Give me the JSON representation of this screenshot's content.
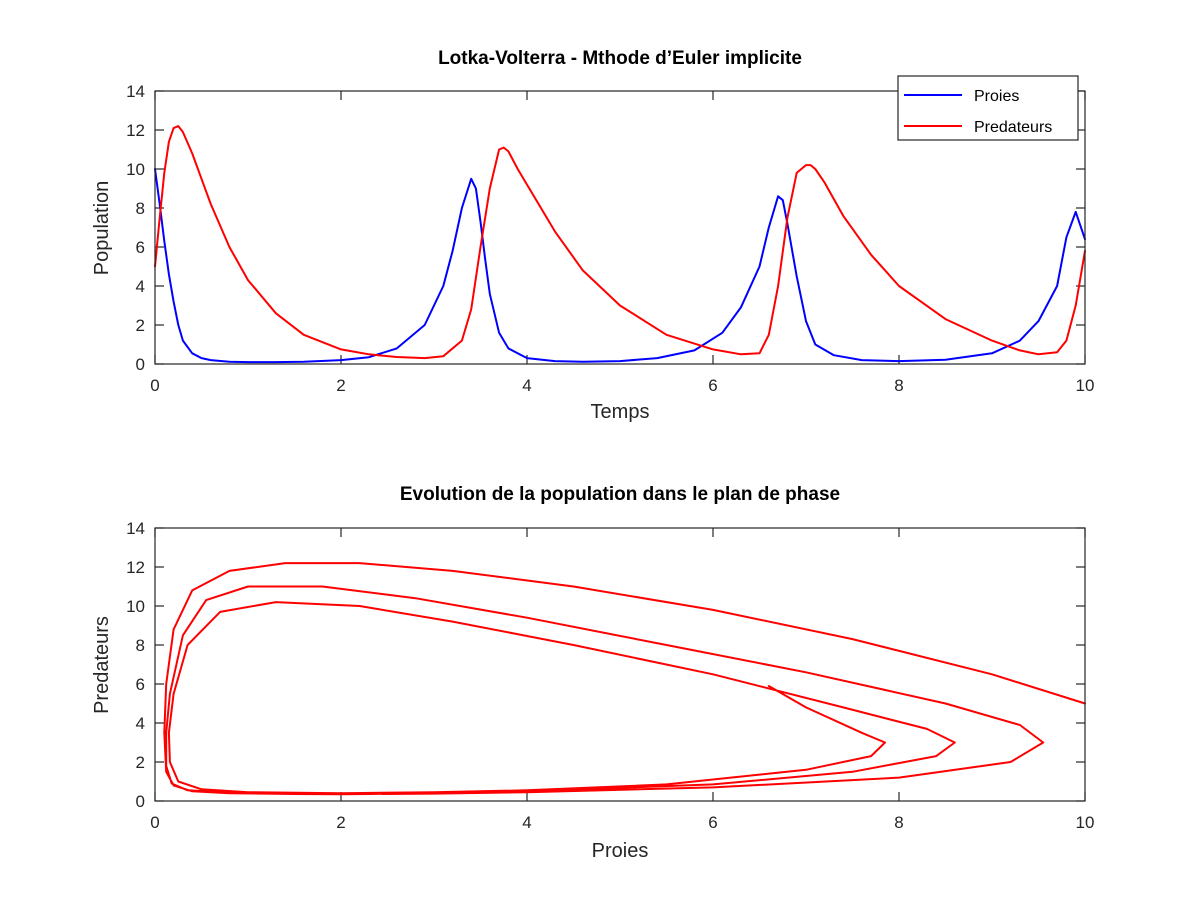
{
  "chart_data": [
    {
      "type": "line",
      "title": "Lotka-Volterra - Mthode d’Euler implicite",
      "xlabel": "Temps",
      "ylabel": "Population",
      "xlim": [
        0,
        10
      ],
      "ylim": [
        0,
        14
      ],
      "xticks": [
        "0",
        "2",
        "4",
        "6",
        "8",
        "10"
      ],
      "yticks": [
        "0",
        "2",
        "4",
        "6",
        "8",
        "10",
        "12",
        "14"
      ],
      "legend_position": "top-right",
      "series": [
        {
          "name": "Proies",
          "color": "#0000ff",
          "x": [
            0,
            0.05,
            0.1,
            0.15,
            0.2,
            0.25,
            0.3,
            0.4,
            0.5,
            0.6,
            0.8,
            1.0,
            1.3,
            1.6,
            2.0,
            2.3,
            2.6,
            2.9,
            3.1,
            3.2,
            3.3,
            3.4,
            3.45,
            3.5,
            3.55,
            3.6,
            3.7,
            3.8,
            4.0,
            4.3,
            4.6,
            5.0,
            5.4,
            5.8,
            6.1,
            6.3,
            6.5,
            6.6,
            6.7,
            6.75,
            6.8,
            6.9,
            7.0,
            7.1,
            7.3,
            7.6,
            8.0,
            8.5,
            9.0,
            9.3,
            9.5,
            9.7,
            9.8,
            9.9,
            10.0
          ],
          "y": [
            10.0,
            8.2,
            6.3,
            4.6,
            3.2,
            2.0,
            1.2,
            0.55,
            0.3,
            0.2,
            0.12,
            0.1,
            0.1,
            0.12,
            0.2,
            0.35,
            0.8,
            2.0,
            4.0,
            5.8,
            8.0,
            9.5,
            9.0,
            7.3,
            5.4,
            3.6,
            1.6,
            0.8,
            0.3,
            0.15,
            0.12,
            0.15,
            0.3,
            0.7,
            1.6,
            2.9,
            5.0,
            7.0,
            8.6,
            8.4,
            7.2,
            4.5,
            2.2,
            1.0,
            0.45,
            0.2,
            0.15,
            0.22,
            0.55,
            1.2,
            2.2,
            4.0,
            6.5,
            7.8,
            6.4
          ]
        },
        {
          "name": "Predateurs",
          "color": "#ff0000",
          "x": [
            0,
            0.05,
            0.1,
            0.15,
            0.2,
            0.25,
            0.3,
            0.4,
            0.5,
            0.6,
            0.8,
            1.0,
            1.3,
            1.6,
            2.0,
            2.3,
            2.6,
            2.9,
            3.1,
            3.3,
            3.4,
            3.5,
            3.6,
            3.7,
            3.75,
            3.8,
            3.9,
            4.0,
            4.3,
            4.6,
            5.0,
            5.5,
            6.0,
            6.3,
            6.5,
            6.6,
            6.7,
            6.8,
            6.9,
            7.0,
            7.05,
            7.1,
            7.2,
            7.4,
            7.7,
            8.0,
            8.5,
            9.0,
            9.3,
            9.5,
            9.7,
            9.8,
            9.9,
            10.0
          ],
          "y": [
            5.0,
            7.5,
            9.8,
            11.4,
            12.1,
            12.2,
            11.9,
            10.8,
            9.5,
            8.2,
            6.0,
            4.3,
            2.6,
            1.5,
            0.75,
            0.5,
            0.36,
            0.3,
            0.4,
            1.2,
            2.8,
            6.0,
            9.0,
            11.0,
            11.1,
            10.9,
            10.0,
            9.2,
            6.8,
            4.8,
            3.0,
            1.5,
            0.75,
            0.5,
            0.55,
            1.5,
            4.0,
            7.5,
            9.8,
            10.2,
            10.2,
            10.0,
            9.3,
            7.6,
            5.6,
            4.0,
            2.3,
            1.2,
            0.7,
            0.5,
            0.6,
            1.2,
            3.0,
            5.8
          ]
        }
      ]
    },
    {
      "type": "line",
      "title": "Evolution de la population dans le plan de phase",
      "xlabel": "Proies",
      "ylabel": "Predateurs",
      "xlim": [
        0,
        10
      ],
      "ylim": [
        0,
        14
      ],
      "xticks": [
        "0",
        "2",
        "4",
        "6",
        "8",
        "10"
      ],
      "yticks": [
        "0",
        "2",
        "4",
        "6",
        "8",
        "10",
        "12",
        "14"
      ],
      "series": [
        {
          "color": "#ff0000",
          "x": [
            10.0,
            9.0,
            7.5,
            6.0,
            4.5,
            3.2,
            2.2,
            1.4,
            0.8,
            0.4,
            0.2,
            0.12,
            0.1,
            0.12,
            0.2,
            0.4,
            0.8,
            1.5,
            2.0,
            3.0,
            4.0,
            6.0,
            8.0,
            9.2,
            9.55,
            9.3,
            8.5,
            7.0,
            5.5,
            4.0,
            2.8,
            1.8,
            1.0,
            0.55,
            0.3,
            0.16,
            0.12,
            0.12,
            0.18,
            0.35,
            0.8,
            1.5,
            2.0,
            3.0,
            4.0,
            6.0,
            7.5,
            8.4,
            8.6,
            8.3,
            7.4,
            6.0,
            4.5,
            3.2,
            2.2,
            1.3,
            0.7,
            0.35,
            0.2,
            0.15,
            0.16,
            0.25,
            0.5,
            1.0,
            2.0,
            3.0,
            4.0,
            5.5,
            7.0,
            7.7,
            7.85,
            7.6,
            7.0,
            6.6
          ],
          "y": [
            5.0,
            6.5,
            8.3,
            9.8,
            11.0,
            11.8,
            12.2,
            12.2,
            11.8,
            10.8,
            8.8,
            6.0,
            3.5,
            1.5,
            0.8,
            0.5,
            0.4,
            0.36,
            0.35,
            0.38,
            0.45,
            0.7,
            1.2,
            2.0,
            3.0,
            3.9,
            5.0,
            6.6,
            8.0,
            9.4,
            10.4,
            11.0,
            11.0,
            10.3,
            8.5,
            5.5,
            3.5,
            1.8,
            0.9,
            0.55,
            0.42,
            0.36,
            0.35,
            0.4,
            0.5,
            0.85,
            1.5,
            2.3,
            3.0,
            3.7,
            4.8,
            6.5,
            8.0,
            9.2,
            10.0,
            10.2,
            9.7,
            8.0,
            5.5,
            3.5,
            2.0,
            1.0,
            0.6,
            0.45,
            0.4,
            0.45,
            0.55,
            0.85,
            1.6,
            2.3,
            3.0,
            3.5,
            4.8,
            5.9
          ]
        }
      ]
    }
  ]
}
